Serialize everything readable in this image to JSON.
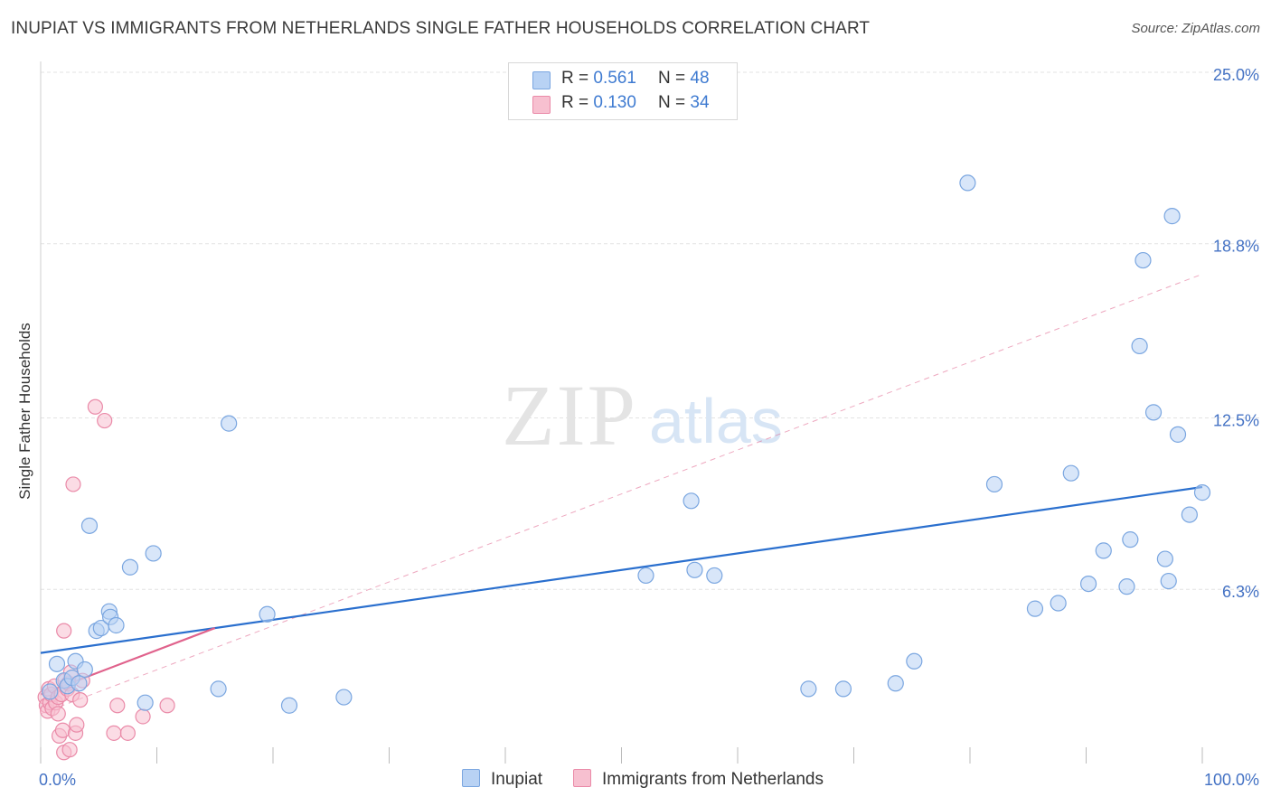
{
  "title": "INUPIAT VS IMMIGRANTS FROM NETHERLANDS SINGLE FATHER HOUSEHOLDS CORRELATION CHART",
  "source": "Source: ZipAtlas.com",
  "watermark": {
    "zip": "ZIP",
    "atlas": "atlas"
  },
  "colors": {
    "inupiat_fill": "#b8d2f4",
    "inupiat_stroke": "#7aa6e0",
    "inupiat_line": "#2a6fce",
    "neth_fill": "#f7c0d0",
    "neth_stroke": "#ea8aa8",
    "neth_line": "#e0628c",
    "grid": "#e3e3e3",
    "tick_text": "#4472c4"
  },
  "legend_top": {
    "rows": [
      {
        "series": "Inupiat",
        "r_label": "R = ",
        "r_value": "0.561",
        "n_label": "N = ",
        "n_value": "48"
      },
      {
        "series": "Immigrants from Netherlands",
        "r_label": "R = ",
        "r_value": "0.130",
        "n_label": "N = ",
        "n_value": "34"
      }
    ]
  },
  "legend_bottom": [
    "Inupiat",
    "Immigrants from Netherlands"
  ],
  "chart_data": {
    "type": "scatter",
    "title": "INUPIAT VS IMMIGRANTS FROM NETHERLANDS SINGLE FATHER HOUSEHOLDS CORRELATION CHART",
    "xlabel": "",
    "ylabel": "Single Father Households",
    "xlim": [
      0,
      100
    ],
    "ylim": [
      0,
      25
    ],
    "x_tick_labels": [
      "0.0%",
      "100.0%"
    ],
    "y_ticks": [
      6.3,
      12.5,
      18.8,
      25.0
    ],
    "y_tick_labels": [
      "6.3%",
      "12.5%",
      "18.8%",
      "25.0%"
    ],
    "grid": true,
    "series": [
      {
        "name": "Inupiat",
        "r": 0.561,
        "n": 48,
        "points": [
          [
            0.8,
            2.6
          ],
          [
            1.4,
            3.6
          ],
          [
            2.0,
            3.0
          ],
          [
            2.3,
            2.8
          ],
          [
            2.7,
            3.1
          ],
          [
            3.0,
            3.7
          ],
          [
            3.3,
            2.9
          ],
          [
            3.8,
            3.4
          ],
          [
            4.2,
            8.6
          ],
          [
            4.8,
            4.8
          ],
          [
            5.2,
            4.9
          ],
          [
            5.9,
            5.5
          ],
          [
            6.0,
            5.3
          ],
          [
            6.5,
            5.0
          ],
          [
            7.7,
            7.1
          ],
          [
            9.0,
            2.2
          ],
          [
            9.7,
            7.6
          ],
          [
            15.3,
            2.7
          ],
          [
            16.2,
            12.3
          ],
          [
            19.5,
            5.4
          ],
          [
            21.4,
            2.1
          ],
          [
            26.1,
            2.4
          ],
          [
            52.1,
            6.8
          ],
          [
            56.0,
            9.5
          ],
          [
            56.3,
            7.0
          ],
          [
            58.0,
            6.8
          ],
          [
            66.1,
            2.7
          ],
          [
            69.1,
            2.7
          ],
          [
            73.6,
            2.9
          ],
          [
            75.2,
            3.7
          ],
          [
            79.8,
            21.0
          ],
          [
            82.1,
            10.1
          ],
          [
            85.6,
            5.6
          ],
          [
            87.6,
            5.8
          ],
          [
            88.7,
            10.5
          ],
          [
            90.2,
            6.5
          ],
          [
            91.5,
            7.7
          ],
          [
            93.5,
            6.4
          ],
          [
            93.8,
            8.1
          ],
          [
            94.6,
            15.1
          ],
          [
            94.9,
            18.2
          ],
          [
            95.8,
            12.7
          ],
          [
            96.8,
            7.4
          ],
          [
            97.1,
            6.6
          ],
          [
            97.4,
            19.8
          ],
          [
            97.9,
            11.9
          ],
          [
            98.9,
            9.0
          ],
          [
            100.0,
            9.8
          ]
        ],
        "trend": {
          "x": [
            0,
            100
          ],
          "y": [
            4.0,
            10.0
          ]
        }
      },
      {
        "name": "Immigrants from Netherlands",
        "r": 0.13,
        "n": 34,
        "points": [
          [
            0.4,
            2.4
          ],
          [
            0.5,
            2.1
          ],
          [
            0.6,
            1.9
          ],
          [
            0.7,
            2.7
          ],
          [
            0.8,
            2.2
          ],
          [
            0.9,
            2.5
          ],
          [
            1.0,
            2.0
          ],
          [
            1.2,
            2.8
          ],
          [
            1.3,
            2.2
          ],
          [
            1.5,
            1.8
          ],
          [
            1.5,
            2.4
          ],
          [
            1.6,
            1.0
          ],
          [
            1.8,
            2.5
          ],
          [
            1.9,
            1.2
          ],
          [
            2.0,
            4.8
          ],
          [
            2.0,
            0.4
          ],
          [
            2.1,
            3.0
          ],
          [
            2.3,
            2.7
          ],
          [
            2.4,
            2.9
          ],
          [
            2.5,
            0.5
          ],
          [
            2.6,
            3.3
          ],
          [
            2.7,
            2.5
          ],
          [
            2.8,
            10.1
          ],
          [
            3.0,
            1.1
          ],
          [
            3.1,
            1.4
          ],
          [
            3.4,
            2.3
          ],
          [
            3.6,
            3.0
          ],
          [
            4.7,
            12.9
          ],
          [
            5.5,
            12.4
          ],
          [
            6.3,
            1.1
          ],
          [
            6.6,
            2.1
          ],
          [
            7.5,
            1.1
          ],
          [
            8.8,
            1.7
          ],
          [
            10.9,
            2.1
          ]
        ],
        "trend": {
          "x": [
            0,
            15
          ],
          "y": [
            2.5,
            4.9
          ]
        },
        "trend_extended": {
          "x": [
            0,
            100
          ],
          "y": [
            1.8,
            17.7
          ]
        }
      }
    ]
  }
}
